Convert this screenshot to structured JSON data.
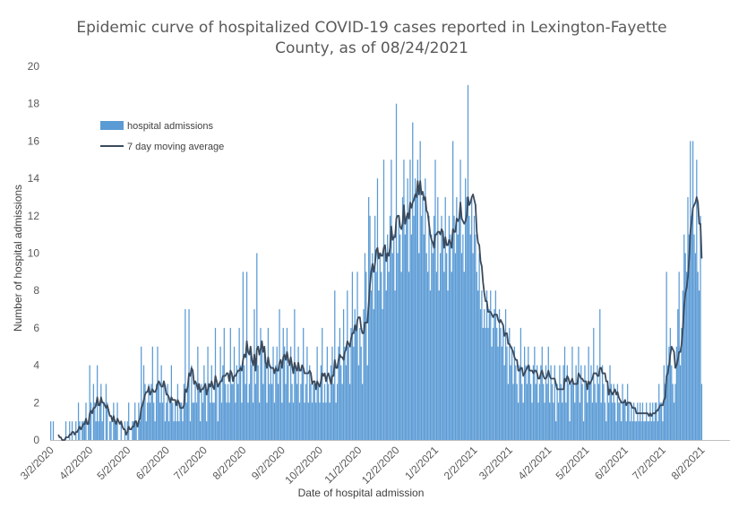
{
  "chart_data": {
    "type": "bar",
    "title": "Epidemic curve of hospitalized COVID-19 cases reported in Lexington-Fayette County, as of 08/24/2021",
    "xlabel": "Date of hospital admission",
    "ylabel": "Number of hospital admissions",
    "ylim": [
      0,
      20
    ],
    "yticks": [
      "0",
      "2",
      "4",
      "6",
      "8",
      "10",
      "12",
      "14",
      "16",
      "18",
      "20"
    ],
    "xlim": [
      "2020-03-02",
      "2021-08-24"
    ],
    "x_tick_labels": [
      "3/2/2020",
      "4/2/2020",
      "5/2/2020",
      "6/2/2020",
      "7/2/2020",
      "8/2/2020",
      "9/2/2020",
      "10/2/2020",
      "11/2/2020",
      "12/2/2020",
      "1/2/2021",
      "2/2/2021",
      "3/2/2021",
      "4/2/2021",
      "5/2/2021",
      "6/2/2021",
      "7/2/2021",
      "8/2/2021"
    ],
    "x_tick_dates": [
      "2020-03-02",
      "2020-04-02",
      "2020-05-02",
      "2020-06-02",
      "2020-07-02",
      "2020-08-02",
      "2020-09-02",
      "2020-10-02",
      "2020-11-02",
      "2020-12-02",
      "2021-01-02",
      "2021-02-02",
      "2021-03-02",
      "2021-04-02",
      "2021-05-02",
      "2021-06-02",
      "2021-07-02",
      "2021-08-02"
    ],
    "grid": false,
    "legend_position": "upper-left",
    "series": [
      {
        "name": "hospital admissions",
        "kind": "bar",
        "color": "#5b9bd5",
        "start_date": "2020-03-02",
        "values": [
          1,
          0,
          1,
          0,
          0,
          0,
          0,
          0,
          0,
          0,
          0,
          0,
          1,
          0,
          0,
          1,
          0,
          1,
          0,
          0,
          1,
          0,
          2,
          1,
          0,
          1,
          1,
          1,
          2,
          0,
          1,
          4,
          2,
          0,
          3,
          2,
          1,
          4,
          1,
          2,
          3,
          1,
          2,
          0,
          3,
          2,
          0,
          1,
          1,
          0,
          2,
          1,
          1,
          2,
          0,
          0,
          1,
          0,
          0,
          1,
          0,
          1,
          2,
          0,
          0,
          1,
          1,
          2,
          1,
          0,
          2,
          1,
          5,
          2,
          4,
          3,
          1,
          2,
          3,
          2,
          3,
          5,
          2,
          1,
          3,
          5,
          3,
          2,
          4,
          2,
          3,
          1,
          2,
          3,
          1,
          2,
          4,
          2,
          1,
          2,
          1,
          3,
          1,
          2,
          2,
          1,
          3,
          7,
          2,
          3,
          7,
          1,
          4,
          2,
          2,
          3,
          2,
          5,
          3,
          1,
          3,
          2,
          4,
          3,
          1,
          5,
          3,
          2,
          4,
          2,
          2,
          6,
          3,
          1,
          3,
          5,
          2,
          4,
          6,
          3,
          2,
          3,
          2,
          6,
          3,
          3,
          5,
          2,
          4,
          3,
          6,
          4,
          2,
          9,
          4,
          3,
          9,
          2,
          3,
          5,
          4,
          2,
          7,
          3,
          10,
          4,
          2,
          6,
          5,
          3,
          5,
          4,
          2,
          6,
          3,
          4,
          3,
          5,
          2,
          4,
          5,
          3,
          7,
          4,
          2,
          6,
          5,
          3,
          6,
          4,
          2,
          5,
          3,
          2,
          7,
          4,
          3,
          5,
          2,
          3,
          4,
          6,
          2,
          3,
          5,
          2,
          4,
          3,
          2,
          3,
          3,
          2,
          5,
          3,
          2,
          4,
          6,
          2,
          3,
          2,
          5,
          3,
          2,
          4,
          5,
          3,
          8,
          2,
          3,
          5,
          6,
          4,
          3,
          7,
          5,
          4,
          8,
          5,
          3,
          6,
          9,
          5,
          7,
          6,
          9,
          4,
          6,
          5,
          3,
          7,
          10,
          9,
          4,
          13,
          12,
          8,
          10,
          7,
          12,
          9,
          14,
          8,
          10,
          9,
          7,
          15,
          10,
          8,
          11,
          9,
          12,
          15,
          10,
          11,
          8,
          18,
          10,
          12,
          11,
          9,
          13,
          15,
          11,
          12,
          14,
          9,
          15,
          11,
          17,
          12,
          14,
          13,
          15,
          10,
          16,
          12,
          13,
          11,
          14,
          10,
          9,
          12,
          8,
          11,
          10,
          12,
          15,
          9,
          13,
          8,
          10,
          12,
          11,
          9,
          13,
          10,
          8,
          12,
          11,
          9,
          16,
          12,
          10,
          13,
          11,
          12,
          15,
          10,
          11,
          9,
          14,
          13,
          19,
          12,
          11,
          13,
          10,
          12,
          11,
          9,
          8,
          10,
          7,
          8,
          6,
          7,
          6,
          8,
          6,
          7,
          8,
          5,
          6,
          7,
          8,
          6,
          5,
          7,
          6,
          5,
          6,
          4,
          7,
          5,
          3,
          6,
          4,
          5,
          3,
          5,
          4,
          3,
          2,
          4,
          6,
          3,
          2,
          5,
          4,
          3,
          5,
          4,
          3,
          2,
          4,
          5,
          3,
          4,
          2,
          3,
          4,
          5,
          3,
          2,
          4,
          3,
          5,
          2,
          4,
          3,
          2,
          4,
          1,
          3,
          2,
          4,
          3,
          2,
          4,
          5,
          2,
          4,
          3,
          1,
          3,
          5,
          3,
          2,
          4,
          3,
          5,
          2,
          4,
          3,
          1,
          4,
          3,
          2,
          5,
          3,
          4,
          2,
          6,
          3,
          2,
          4,
          3,
          7,
          2,
          4,
          3,
          2,
          1,
          3,
          2,
          4,
          3,
          2,
          3,
          2,
          1,
          3,
          2,
          2,
          1,
          3,
          2,
          2,
          1,
          3,
          2,
          1,
          2,
          1,
          2,
          1,
          1,
          2,
          1,
          2,
          1,
          2,
          1,
          1,
          2,
          1,
          1,
          2,
          1,
          2,
          1,
          2,
          2,
          1,
          3,
          2,
          2,
          1,
          4,
          3,
          9,
          4,
          5,
          6,
          4,
          3,
          2,
          3,
          5,
          7,
          9,
          4,
          6,
          8,
          11,
          10,
          9,
          13,
          11,
          16,
          12,
          16,
          11,
          10,
          15,
          9,
          8,
          12,
          3
        ]
      },
      {
        "name": "7 day moving average",
        "kind": "line",
        "color": "#3a4a5c"
      }
    ]
  }
}
